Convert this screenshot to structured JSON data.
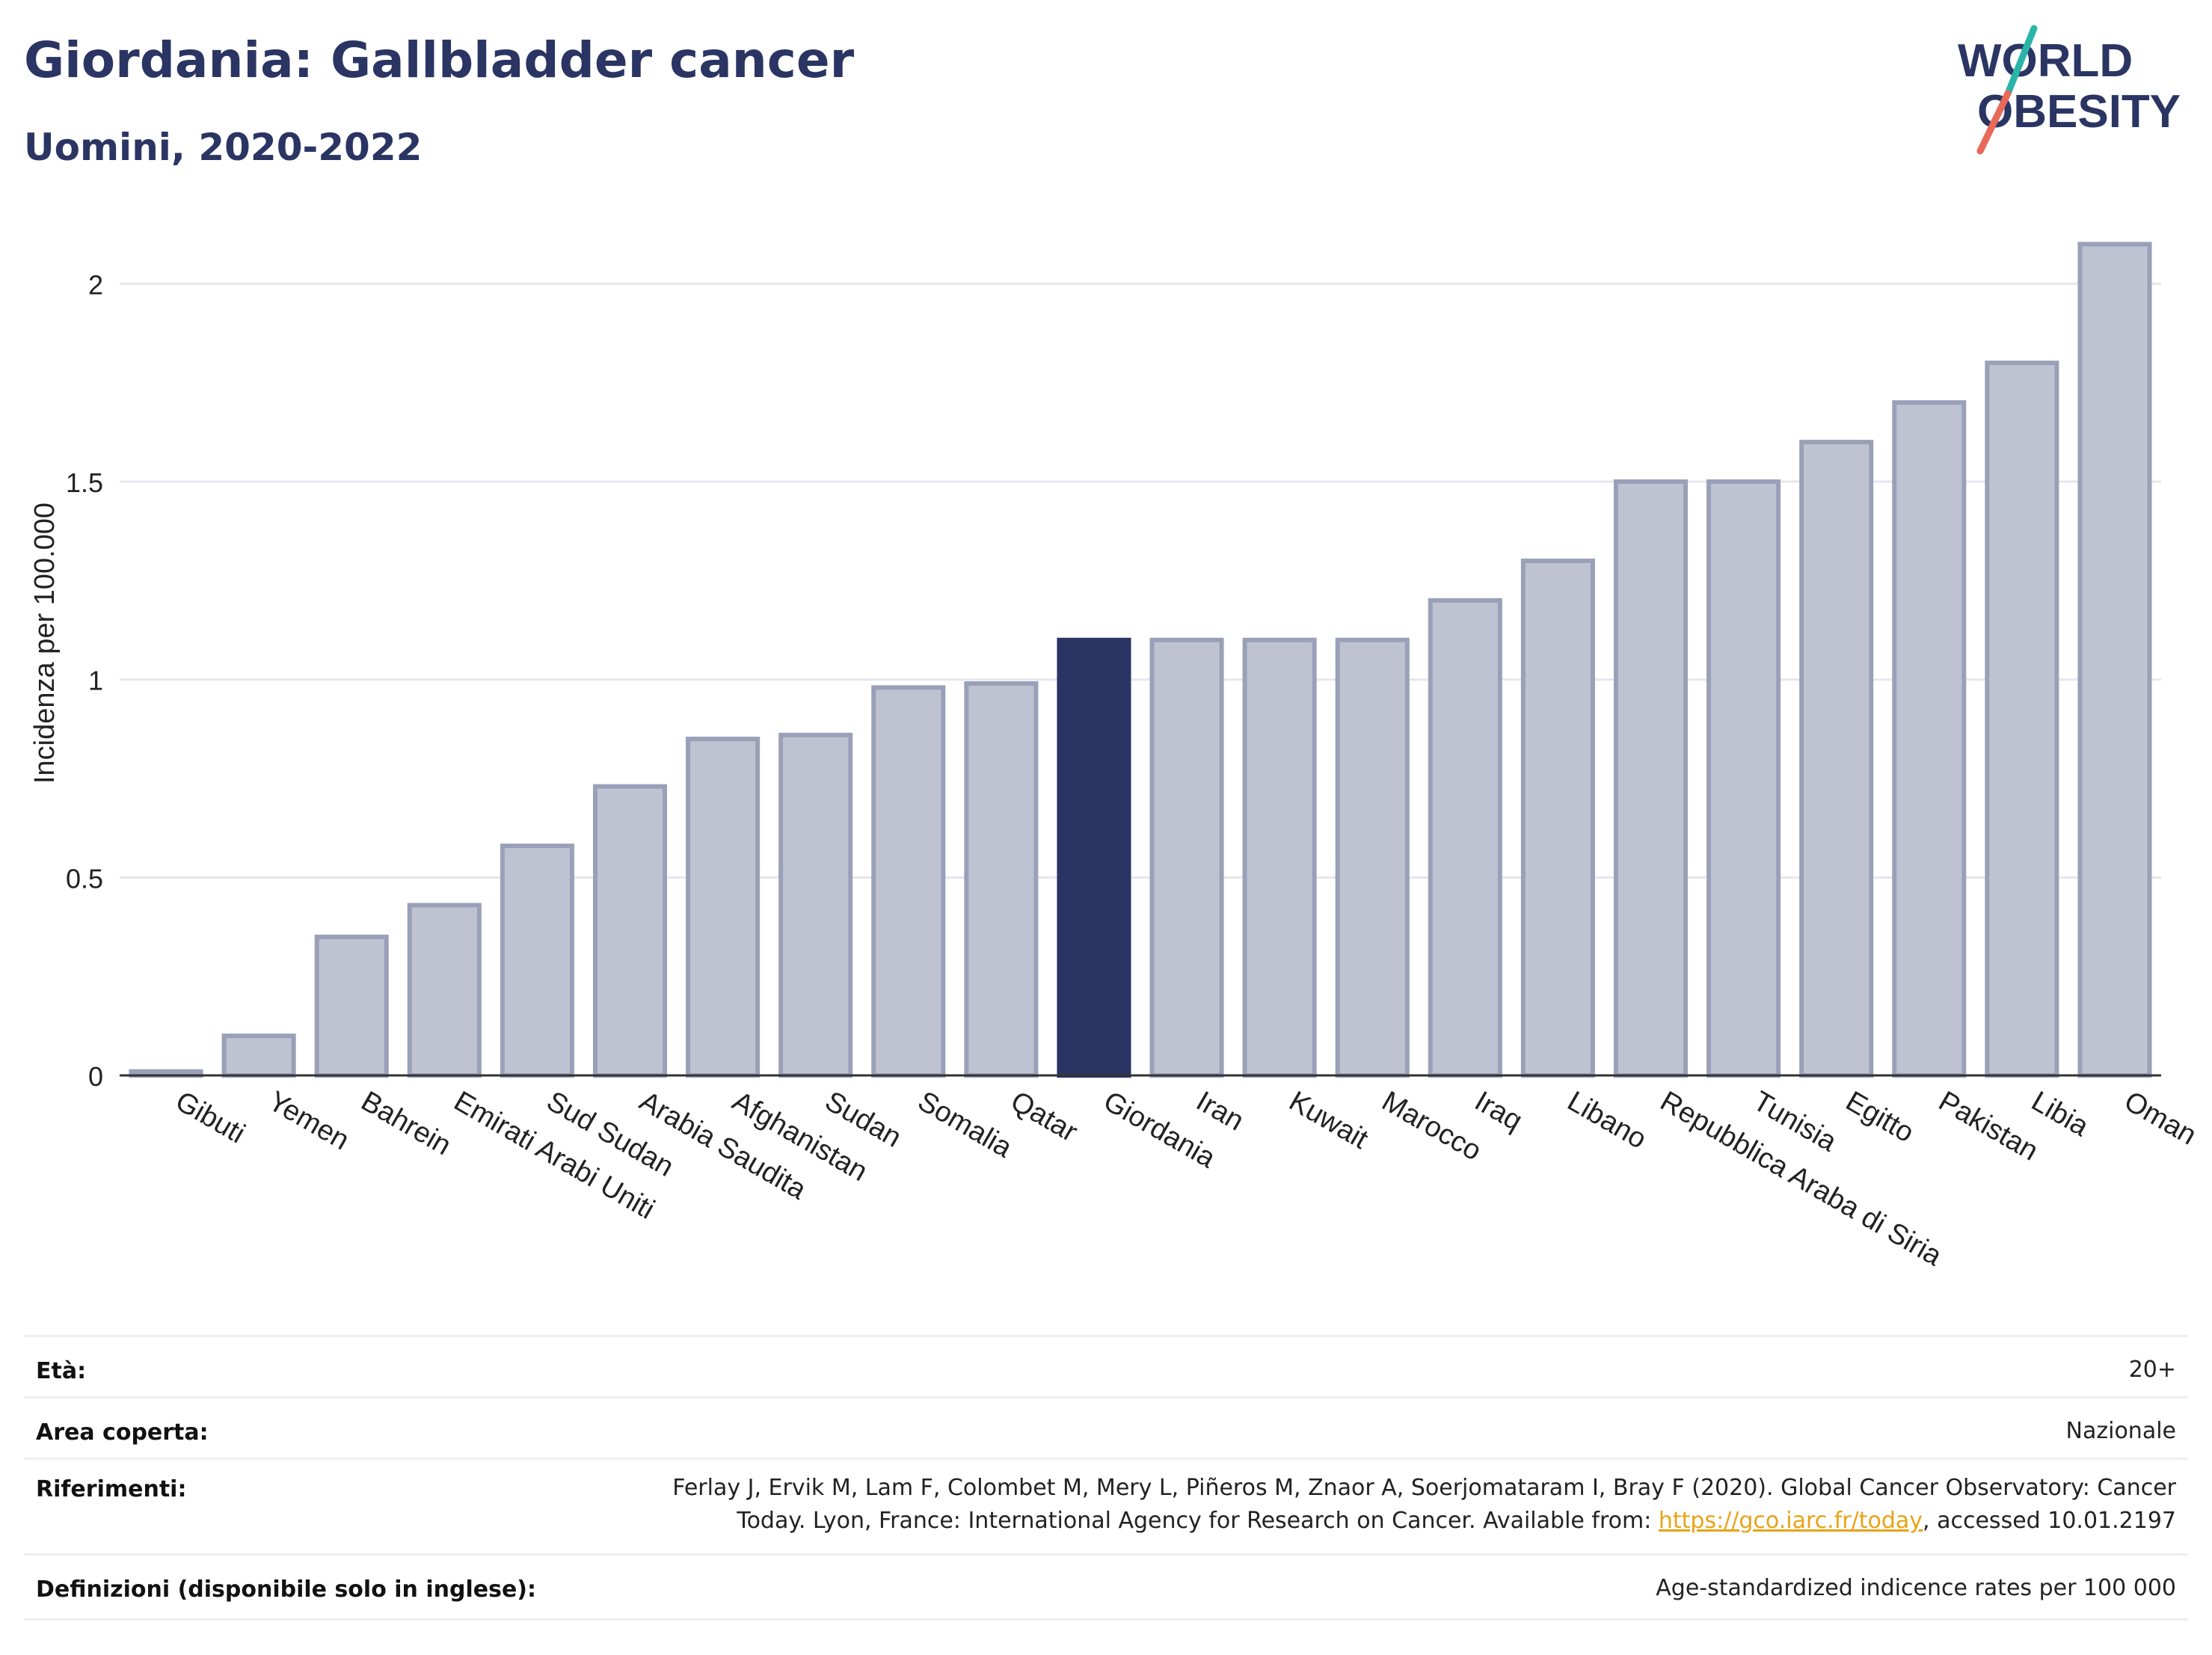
{
  "title": "Giordania: Gallbladder cancer",
  "subtitle": "Uomini, 2020-2022",
  "logo": {
    "line1": "WORLD",
    "line2": "OBESITY",
    "colors": {
      "text": "#2b3563",
      "slash_top": "#2bb5a8",
      "slash_bottom": "#e8685a"
    }
  },
  "colors": {
    "bar": "#bfc3d1",
    "bar_stroke": "#9aa0b8",
    "highlight": "#2b3563",
    "grid": "#e6e6ee",
    "axis": "#333333"
  },
  "chart_data": {
    "type": "bar",
    "ylabel": "Incidenza per 100.000",
    "xlabel": "",
    "ylim": [
      0,
      2.15
    ],
    "yticks": [
      0,
      0.5,
      1,
      1.5,
      2
    ],
    "ytick_labels": [
      "0",
      "0.5",
      "1",
      "1.5",
      "2"
    ],
    "grid": true,
    "highlight": "Giordania",
    "categories": [
      "Gibuti",
      "Yemen",
      "Bahrein",
      "Emirati Arabi Uniti",
      "Sud Sudan",
      "Arabia Saudita",
      "Afghanistan",
      "Sudan",
      "Somalia",
      "Qatar",
      "Giordania",
      "Iran",
      "Kuwait",
      "Marocco",
      "Iraq",
      "Libano",
      "Repubblica Araba di Siria",
      "Tunisia",
      "Egitto",
      "Pakistan",
      "Libia",
      "Oman"
    ],
    "values": [
      0.01,
      0.1,
      0.35,
      0.43,
      0.58,
      0.73,
      0.85,
      0.86,
      0.98,
      0.99,
      1.1,
      1.1,
      1.1,
      1.1,
      1.2,
      1.3,
      1.5,
      1.5,
      1.6,
      1.7,
      1.8,
      2.1
    ]
  },
  "info": {
    "eta_label": "Età:",
    "eta_value": "20+",
    "area_label": "Area coperta:",
    "area_value": "Nazionale",
    "rif_label": "Riferimenti:",
    "rif_line1": "Ferlay J, Ervik M, Lam F, Colombet M, Mery L, Piñeros M, Znaor A, Soerjomataram I, Bray F (2020). Global Cancer Observatory: Cancer",
    "rif_line2_pre": "Today. Lyon, France: International Agency for Research on Cancer. Available from: ",
    "rif_link": "https://gco.iarc.fr/today",
    "rif_line2_post": ", accessed 10.01.2197",
    "def_label": "Definizioni (disponibile solo in inglese):",
    "def_value": "Age-standardized indicence rates per 100 000"
  }
}
